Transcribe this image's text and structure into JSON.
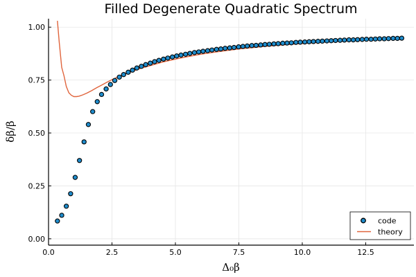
{
  "chart_data": {
    "type": "scatter",
    "title": "Filled Degenerate Quadratic Spectrum",
    "xlabel": "Δ₀β",
    "ylabel": "δβ/β",
    "xlim": [
      0,
      14.4
    ],
    "ylim": [
      -0.03,
      1.04
    ],
    "xticks": [
      0,
      2.5,
      5,
      7.5,
      10,
      12.5
    ],
    "xtick_labels": [
      "0.0",
      "2.5",
      "5.0",
      "7.5",
      "10.0",
      "12.5"
    ],
    "yticks": [
      0,
      0.25,
      0.5,
      0.75,
      1.0
    ],
    "ytick_labels": [
      "0.00",
      "0.25",
      "0.50",
      "0.75",
      "1.00"
    ],
    "grid": true,
    "legend_position": "bottom-right",
    "colors": {
      "code": "#1f8ccc",
      "theory": "#e0643c",
      "grid": "#e6e6e6"
    },
    "series": [
      {
        "name": "code",
        "kind": "scatter",
        "x": [
          0.35,
          0.52,
          0.7,
          0.87,
          1.05,
          1.22,
          1.4,
          1.57,
          1.74,
          1.92,
          2.09,
          2.27,
          2.44,
          2.61,
          2.79,
          2.96,
          3.14,
          3.31,
          3.48,
          3.66,
          3.83,
          4.01,
          4.18,
          4.35,
          4.53,
          4.7,
          4.88,
          5.05,
          5.22,
          5.4,
          5.57,
          5.75,
          5.92,
          6.09,
          6.27,
          6.44,
          6.62,
          6.79,
          6.96,
          7.14,
          7.31,
          7.49,
          7.66,
          7.83,
          8.01,
          8.18,
          8.36,
          8.53,
          8.7,
          8.88,
          9.05,
          9.23,
          9.4,
          9.57,
          9.75,
          9.92,
          10.1,
          10.27,
          10.44,
          10.62,
          10.79,
          10.97,
          11.14,
          11.31,
          11.49,
          11.66,
          11.84,
          12.01,
          12.18,
          12.36,
          12.53,
          12.71,
          12.88,
          13.05,
          13.23,
          13.4,
          13.58,
          13.75,
          13.92
        ],
        "y": [
          0.084,
          0.111,
          0.154,
          0.213,
          0.29,
          0.37,
          0.458,
          0.54,
          0.601,
          0.648,
          0.682,
          0.708,
          0.729,
          0.748,
          0.764,
          0.776,
          0.787,
          0.797,
          0.807,
          0.815,
          0.823,
          0.83,
          0.837,
          0.843,
          0.849,
          0.854,
          0.859,
          0.864,
          0.868,
          0.872,
          0.876,
          0.88,
          0.883,
          0.886,
          0.889,
          0.892,
          0.895,
          0.897,
          0.9,
          0.902,
          0.904,
          0.907,
          0.909,
          0.911,
          0.913,
          0.914,
          0.916,
          0.918,
          0.919,
          0.921,
          0.922,
          0.924,
          0.925,
          0.926,
          0.928,
          0.929,
          0.93,
          0.931,
          0.932,
          0.933,
          0.934,
          0.935,
          0.936,
          0.937,
          0.938,
          0.939,
          0.94,
          0.94,
          0.941,
          0.942,
          0.943,
          0.943,
          0.944,
          0.945,
          0.945,
          0.946,
          0.947,
          0.947,
          0.948
        ]
      },
      {
        "name": "theory",
        "kind": "line",
        "x": [
          0.35,
          0.42,
          0.52,
          0.61,
          0.7,
          0.8,
          0.9,
          1.0,
          1.1,
          1.2,
          1.35,
          1.5,
          1.7,
          1.9,
          2.1,
          2.3,
          2.5,
          2.7,
          3.0,
          3.3,
          3.6,
          4.0,
          4.5,
          5.0,
          5.5,
          6.0,
          6.5,
          7.0,
          7.5,
          8.0,
          8.5,
          9.0,
          9.5,
          10.0,
          10.5,
          11.0,
          11.5,
          12.0,
          12.5,
          13.0,
          13.5,
          13.92
        ],
        "y": [
          1.03,
          0.93,
          0.81,
          0.77,
          0.72,
          0.69,
          0.678,
          0.672,
          0.672,
          0.674,
          0.68,
          0.688,
          0.7,
          0.714,
          0.727,
          0.74,
          0.752,
          0.763,
          0.778,
          0.791,
          0.804,
          0.818,
          0.835,
          0.849,
          0.861,
          0.872,
          0.881,
          0.889,
          0.897,
          0.903,
          0.909,
          0.914,
          0.919,
          0.923,
          0.927,
          0.931,
          0.934,
          0.937,
          0.94,
          0.943,
          0.945,
          0.947
        ]
      }
    ]
  }
}
